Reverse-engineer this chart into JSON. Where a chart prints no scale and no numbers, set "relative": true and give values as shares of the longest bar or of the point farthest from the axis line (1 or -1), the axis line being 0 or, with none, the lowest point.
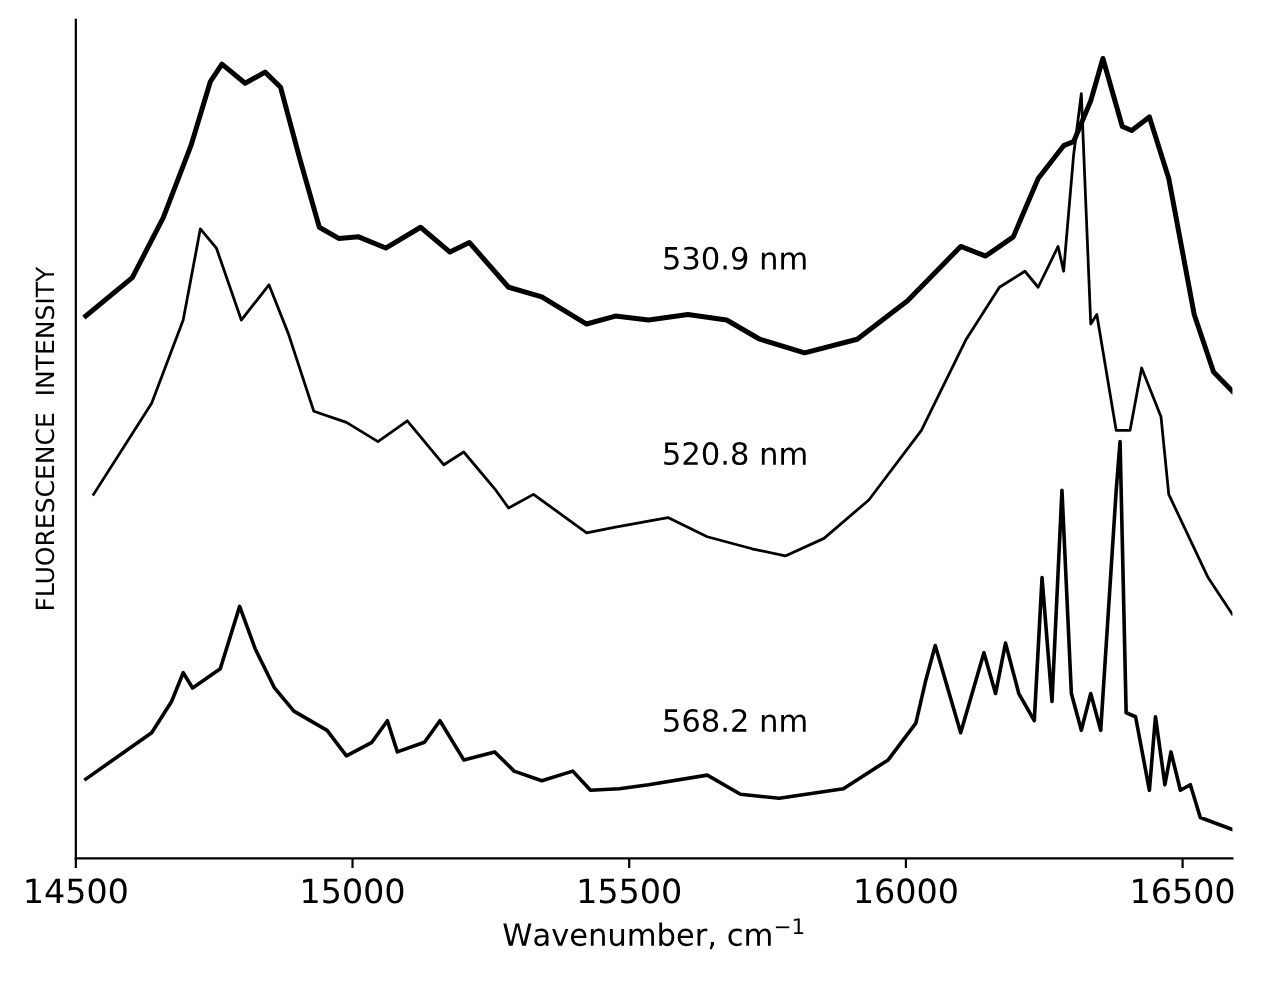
{
  "chart_data": {
    "type": "line",
    "xlabel": "Wavenumber, cm$^{−1}$",
    "ylabel": "FLUORESCENCE  INTENSITY",
    "relative": true,
    "xlim": [
      14500,
      16590
    ],
    "xticks": [
      14500,
      15000,
      15500,
      16000,
      16500
    ],
    "tick_labels": "x",
    "grid": false,
    "legend": false,
    "series": [
      {
        "name": "530.9 nm",
        "color": "#000000",
        "x": [
          14518,
          14602,
          14658,
          14708,
          14743,
          14764,
          14806,
          14842,
          14870,
          14905,
          14940,
          14975,
          15011,
          15060,
          15123,
          15176,
          15211,
          15282,
          15342,
          15423,
          15475,
          15535,
          15606,
          15676,
          15736,
          15817,
          15912,
          16003,
          16099,
          16144,
          16194,
          16239,
          16285,
          16303,
          16334,
          16356,
          16391,
          16408,
          16440,
          16475,
          16521,
          16556,
          16590
        ],
        "values": [
          0.678,
          0.726,
          0.801,
          0.891,
          0.971,
          0.993,
          0.969,
          0.983,
          0.964,
          0.874,
          0.789,
          0.775,
          0.777,
          0.763,
          0.789,
          0.758,
          0.77,
          0.714,
          0.702,
          0.668,
          0.678,
          0.673,
          0.68,
          0.673,
          0.649,
          0.632,
          0.649,
          0.697,
          0.765,
          0.753,
          0.777,
          0.85,
          0.891,
          0.896,
          0.947,
          1.0,
          0.915,
          0.91,
          0.927,
          0.85,
          0.68,
          0.608,
          0.584
        ]
      },
      {
        "name": "520.8 nm",
        "color": "#000000",
        "x": [
          14532,
          14637,
          14694,
          14725,
          14754,
          14799,
          14849,
          14884,
          14930,
          14989,
          15046,
          15099,
          15165,
          15201,
          15257,
          15282,
          15327,
          15423,
          15475,
          15570,
          15641,
          15722,
          15782,
          15852,
          15933,
          16028,
          16109,
          16169,
          16215,
          16239,
          16275,
          16285,
          16303,
          16317,
          16334,
          16345,
          16380,
          16405,
          16426,
          16461,
          16475,
          16546,
          16590
        ],
        "values": [
          0.455,
          0.569,
          0.673,
          0.787,
          0.763,
          0.673,
          0.717,
          0.656,
          0.559,
          0.545,
          0.521,
          0.547,
          0.492,
          0.508,
          0.462,
          0.438,
          0.455,
          0.407,
          0.414,
          0.426,
          0.402,
          0.387,
          0.378,
          0.4,
          0.448,
          0.535,
          0.649,
          0.714,
          0.734,
          0.714,
          0.765,
          0.734,
          0.879,
          0.956,
          0.668,
          0.68,
          0.535,
          0.535,
          0.613,
          0.552,
          0.455,
          0.351,
          0.305
        ]
      },
      {
        "name": "568.2 nm",
        "color": "#000000",
        "x": [
          14518,
          14637,
          14673,
          14694,
          14711,
          14761,
          14796,
          14824,
          14859,
          14894,
          14954,
          14989,
          15035,
          15063,
          15081,
          15130,
          15158,
          15201,
          15257,
          15292,
          15342,
          15398,
          15430,
          15482,
          15535,
          15641,
          15701,
          15771,
          15887,
          15968,
          16018,
          16035,
          16053,
          16099,
          16141,
          16162,
          16180,
          16204,
          16232,
          16246,
          16264,
          16282,
          16299,
          16317,
          16334,
          16352,
          16380,
          16387,
          16398,
          16415,
          16440,
          16451,
          16468,
          16479,
          16496,
          16514,
          16532,
          16590
        ],
        "values": [
          0.099,
          0.157,
          0.196,
          0.232,
          0.213,
          0.237,
          0.315,
          0.262,
          0.213,
          0.184,
          0.16,
          0.128,
          0.145,
          0.172,
          0.133,
          0.145,
          0.172,
          0.123,
          0.133,
          0.109,
          0.097,
          0.109,
          0.085,
          0.087,
          0.092,
          0.104,
          0.08,
          0.075,
          0.087,
          0.123,
          0.169,
          0.22,
          0.266,
          0.157,
          0.257,
          0.206,
          0.269,
          0.206,
          0.172,
          0.351,
          0.196,
          0.46,
          0.206,
          0.16,
          0.206,
          0.16,
          0.46,
          0.521,
          0.182,
          0.177,
          0.085,
          0.177,
          0.092,
          0.133,
          0.085,
          0.092,
          0.051,
          0.036
        ]
      }
    ]
  }
}
